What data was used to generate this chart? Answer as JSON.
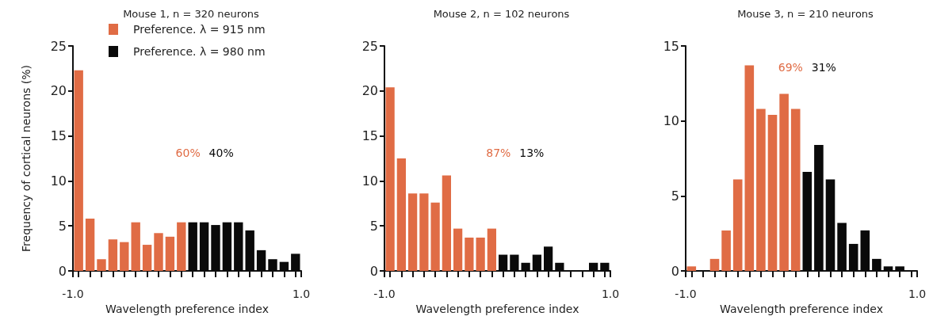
{
  "chart_data": [
    {
      "type": "histogram",
      "title": "Mouse 1, n = 320 neurons",
      "xlabel": "Wavelength preference index",
      "ylabel": "Frequency of cortical neurons (%)",
      "legend": "top",
      "annotations": [
        "60%",
        "40%"
      ],
      "bins": [
        -1,
        -0.9,
        -0.8,
        -0.7,
        -0.6,
        -0.5,
        -0.4,
        -0.3,
        -0.2,
        -0.1,
        0,
        0.1,
        0.2,
        0.3,
        0.4,
        0.5,
        0.6,
        0.7,
        0.8,
        0.9,
        1
      ],
      "series": [
        {
          "name": "Preference. λ = 915 nm",
          "color": "#e06c45",
          "values": [
            22.3,
            5.8,
            1.3,
            3.5,
            3.2,
            5.4,
            2.9,
            4.2,
            3.8,
            5.4,
            null,
            null,
            null,
            null,
            null,
            null,
            null,
            null,
            null,
            null
          ]
        },
        {
          "name": "Preference. λ = 980 nm",
          "color": "#0a0a0a",
          "values": [
            null,
            null,
            null,
            null,
            null,
            null,
            null,
            null,
            null,
            null,
            5.4,
            5.4,
            5.1,
            5.4,
            5.4,
            4.5,
            2.3,
            1.3,
            1.0,
            1.9
          ]
        }
      ],
      "xlim": [
        -1,
        1
      ],
      "xticks": [
        {
          "value": -1,
          "label": "-1.0"
        },
        {
          "value": -0.95,
          "label": null
        },
        {
          "value": -0.85,
          "label": null
        },
        {
          "value": -0.75,
          "label": null
        },
        {
          "value": -0.65,
          "label": null
        },
        {
          "value": -0.55,
          "label": null
        },
        {
          "value": -0.45,
          "label": null
        },
        {
          "value": -0.35,
          "label": null
        },
        {
          "value": -0.25,
          "label": null
        },
        {
          "value": -0.15,
          "label": null
        },
        {
          "value": -0.05,
          "label": null
        },
        {
          "value": 0.05,
          "label": null
        },
        {
          "value": 0.15,
          "label": null
        },
        {
          "value": 0.25,
          "label": null
        },
        {
          "value": 0.35,
          "label": null
        },
        {
          "value": 0.45,
          "label": null
        },
        {
          "value": 0.55,
          "label": null
        },
        {
          "value": 0.65,
          "label": null
        },
        {
          "value": 0.75,
          "label": null
        },
        {
          "value": 0.85,
          "label": null
        },
        {
          "value": 0.95,
          "label": null
        },
        {
          "value": 1,
          "label": "1.0"
        }
      ],
      "ylim": [
        0,
        25
      ],
      "yticks": [
        0,
        5,
        10,
        15,
        20,
        25
      ],
      "grid": false
    },
    {
      "type": "histogram",
      "title": "Mouse 2, n = 102 neurons",
      "xlabel": "Wavelength preference index",
      "annotations": [
        "87%",
        "13%"
      ],
      "bins": [
        -1,
        -0.9,
        -0.8,
        -0.7,
        -0.6,
        -0.5,
        -0.4,
        -0.3,
        -0.2,
        -0.1,
        0,
        0.1,
        0.2,
        0.3,
        0.4,
        0.5,
        0.6,
        0.7,
        0.8,
        0.9,
        1
      ],
      "series": [
        {
          "color": "#e06c45",
          "values": [
            20.4,
            12.5,
            8.6,
            8.6,
            7.6,
            10.6,
            4.7,
            3.7,
            3.7,
            4.7,
            null,
            null,
            null,
            null,
            null,
            null,
            null,
            null,
            null,
            null
          ]
        },
        {
          "color": "#0a0a0a",
          "values": [
            null,
            null,
            null,
            null,
            null,
            null,
            null,
            null,
            null,
            null,
            1.8,
            1.8,
            0.9,
            1.8,
            2.7,
            0.9,
            0,
            0,
            0.9,
            0.9
          ]
        }
      ],
      "xlim": [
        -1,
        1
      ],
      "xticks": [
        {
          "value": -1,
          "label": "-1.0"
        },
        {
          "value": -0.95,
          "label": null
        },
        {
          "value": -0.85,
          "label": null
        },
        {
          "value": -0.75,
          "label": null
        },
        {
          "value": -0.65,
          "label": null
        },
        {
          "value": -0.55,
          "label": null
        },
        {
          "value": -0.45,
          "label": null
        },
        {
          "value": -0.35,
          "label": null
        },
        {
          "value": -0.25,
          "label": null
        },
        {
          "value": -0.15,
          "label": null
        },
        {
          "value": -0.05,
          "label": null
        },
        {
          "value": 0.05,
          "label": null
        },
        {
          "value": 0.15,
          "label": null
        },
        {
          "value": 0.25,
          "label": null
        },
        {
          "value": 0.35,
          "label": null
        },
        {
          "value": 0.45,
          "label": null
        },
        {
          "value": 0.55,
          "label": null
        },
        {
          "value": 0.65,
          "label": null
        },
        {
          "value": 0.75,
          "label": null
        },
        {
          "value": 0.85,
          "label": null
        },
        {
          "value": 0.95,
          "label": null
        },
        {
          "value": 1,
          "label": "1.0"
        }
      ],
      "ylim": [
        0,
        25
      ],
      "yticks": [
        0,
        5,
        10,
        15,
        20,
        25
      ],
      "grid": false
    },
    {
      "type": "histogram",
      "title": "Mouse 3, n = 210 neurons",
      "xlabel": "Wavelength preference index",
      "annotations": [
        "69%",
        "31%"
      ],
      "bins": [
        -1,
        -0.9,
        -0.8,
        -0.7,
        -0.6,
        -0.5,
        -0.4,
        -0.3,
        -0.2,
        -0.1,
        0,
        0.1,
        0.2,
        0.3,
        0.4,
        0.5,
        0.6,
        0.7,
        0.8,
        0.9,
        1
      ],
      "series": [
        {
          "color": "#e06c45",
          "values": [
            0.3,
            0,
            0.8,
            2.7,
            6.1,
            13.7,
            10.8,
            10.4,
            11.8,
            10.8,
            null,
            null,
            null,
            null,
            null,
            null,
            null,
            null,
            null,
            null
          ]
        },
        {
          "color": "#0a0a0a",
          "values": [
            null,
            null,
            null,
            null,
            null,
            null,
            null,
            null,
            null,
            null,
            6.6,
            8.4,
            6.1,
            3.2,
            1.8,
            2.7,
            0.8,
            0.3,
            0.3,
            0
          ]
        }
      ],
      "xlim": [
        -1,
        1
      ],
      "xticks": [
        {
          "value": -1,
          "label": "-1.0"
        },
        {
          "value": -0.95,
          "label": null
        },
        {
          "value": -0.85,
          "label": null
        },
        {
          "value": -0.75,
          "label": null
        },
        {
          "value": -0.65,
          "label": null
        },
        {
          "value": -0.55,
          "label": null
        },
        {
          "value": -0.45,
          "label": null
        },
        {
          "value": -0.35,
          "label": null
        },
        {
          "value": -0.25,
          "label": null
        },
        {
          "value": -0.15,
          "label": null
        },
        {
          "value": -0.05,
          "label": null
        },
        {
          "value": 0.05,
          "label": null
        },
        {
          "value": 0.15,
          "label": null
        },
        {
          "value": 0.25,
          "label": null
        },
        {
          "value": 0.35,
          "label": null
        },
        {
          "value": 0.45,
          "label": null
        },
        {
          "value": 0.55,
          "label": null
        },
        {
          "value": 0.65,
          "label": null
        },
        {
          "value": 0.75,
          "label": null
        },
        {
          "value": 0.85,
          "label": null
        },
        {
          "value": 0.95,
          "label": null
        },
        {
          "value": 1,
          "label": "1.0"
        }
      ],
      "ylim": [
        0,
        15
      ],
      "yticks": [
        0,
        5,
        10,
        15
      ],
      "grid": false
    }
  ]
}
